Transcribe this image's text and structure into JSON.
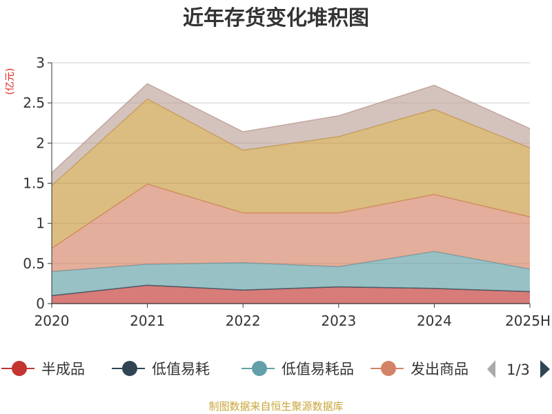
{
  "chart_data": {
    "type": "area",
    "stacked": true,
    "title": "近年存货变化堆积图",
    "unit_label": "(亿元)",
    "categories": [
      "2020",
      "2021",
      "2022",
      "2023",
      "2024",
      "2025H"
    ],
    "ylim": [
      0,
      3
    ],
    "yticks": [
      "0",
      "0.5",
      "1",
      "1.5",
      "2",
      "2.5",
      "3"
    ],
    "grid": true,
    "series": [
      {
        "name": "半成品",
        "color": "#c23531",
        "values": [
          0.1,
          0.23,
          0.17,
          0.21,
          0.19,
          0.15
        ]
      },
      {
        "name": "低值易耗",
        "color": "#2f4554",
        "values": [
          0,
          0,
          0,
          0,
          0,
          0
        ]
      },
      {
        "name": "低值易耗品",
        "color": "#61a0a8",
        "values": [
          0.3,
          0.26,
          0.34,
          0.25,
          0.46,
          0.28
        ]
      },
      {
        "name": "发出商品",
        "color": "#d48265",
        "values": [
          0.29,
          1.0,
          0.62,
          0.67,
          0.71,
          0.65
        ]
      },
      {
        "name": "",
        "color": "#c89a3e",
        "values": [
          0.78,
          1.06,
          0.78,
          0.95,
          1.06,
          0.86
        ]
      },
      {
        "name": "",
        "color": "#bda29a",
        "values": [
          0.16,
          0.19,
          0.23,
          0.26,
          0.3,
          0.24
        ]
      }
    ],
    "legend": {
      "visible_items": [
        "半成品",
        "低值易耗",
        "低值易耗品",
        "发出商品"
      ],
      "page": "1/3"
    },
    "source": "制图数据来自恒生聚源数据库"
  }
}
